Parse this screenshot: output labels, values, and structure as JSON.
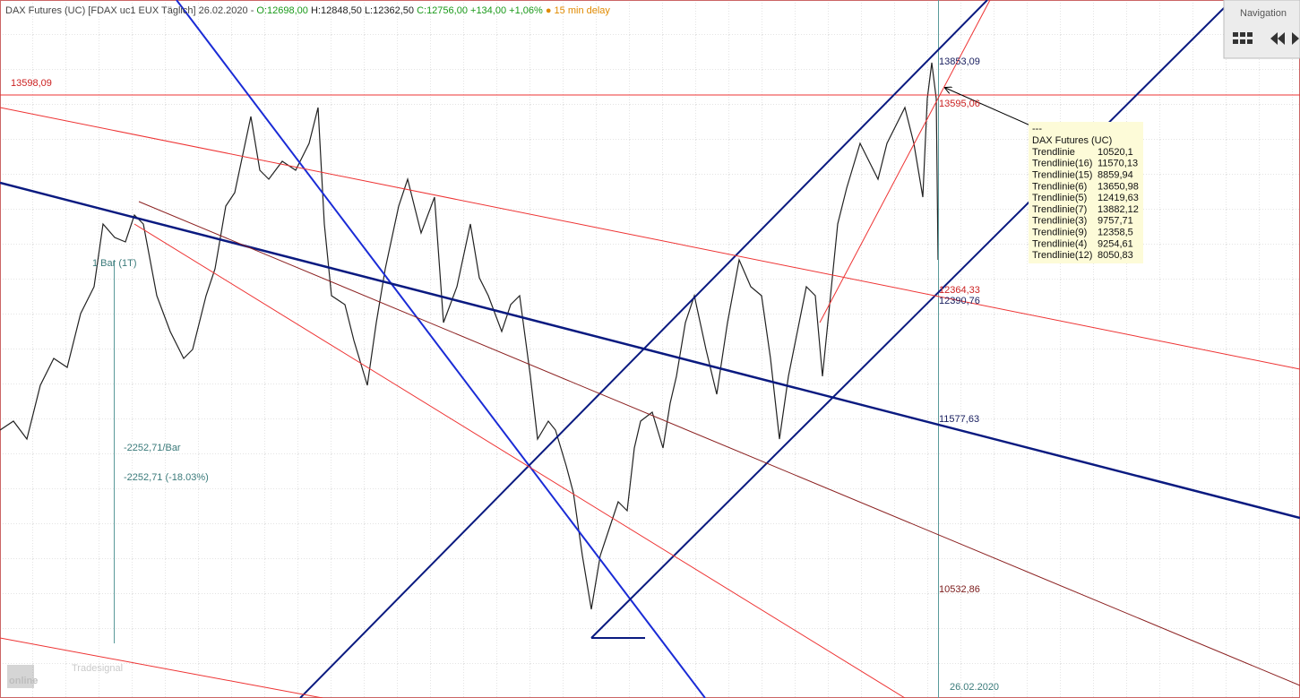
{
  "header": {
    "name": "DAX Futures (UC) [FDAX uc1 EUX Täglich] 26.02.2020 -",
    "open": "O:12698,00",
    "high": "H:12848,50",
    "low": "L:12362,50",
    "close": "C:12756,00",
    "change": "+134,00",
    "change_pct": "+1,06%",
    "delay": "● 15 min delay"
  },
  "price_labels": {
    "left_level": "13598,09",
    "high": "13853,09",
    "red_level": "13595,06",
    "red_trend": "12364,33",
    "channel": "12390,76",
    "navy_trend": "11577,63",
    "brown_trend": "10532,86"
  },
  "measure": {
    "bars": "1 Bar (1T)",
    "per_bar": "-2252,71/Bar",
    "total": "-2252,71 (-18.03%)"
  },
  "date_label": "26.02.2020",
  "tooltip": {
    "sep": "---",
    "title": "DAX Futures (UC)",
    "rows": [
      [
        "Trendlinie",
        "10520,1"
      ],
      [
        "Trendlinie(16)",
        "11570,13"
      ],
      [
        "Trendlinie(15)",
        "8859,94"
      ],
      [
        "Trendlinie(6)",
        "13650,98"
      ],
      [
        "Trendlinie(5)",
        "12419,63"
      ],
      [
        "Trendlinie(7)",
        "13882,12"
      ],
      [
        "Trendlinie(3)",
        "9757,71"
      ],
      [
        "Trendlinie(9)",
        "12358,5"
      ],
      [
        "Trendlinie(4)",
        "9254,61"
      ],
      [
        "Trendlinie(12)",
        "8050,83"
      ]
    ]
  },
  "navigation": {
    "title": "Navigation"
  },
  "logo": {
    "small": "Tradesignal",
    "big": "online"
  }
}
